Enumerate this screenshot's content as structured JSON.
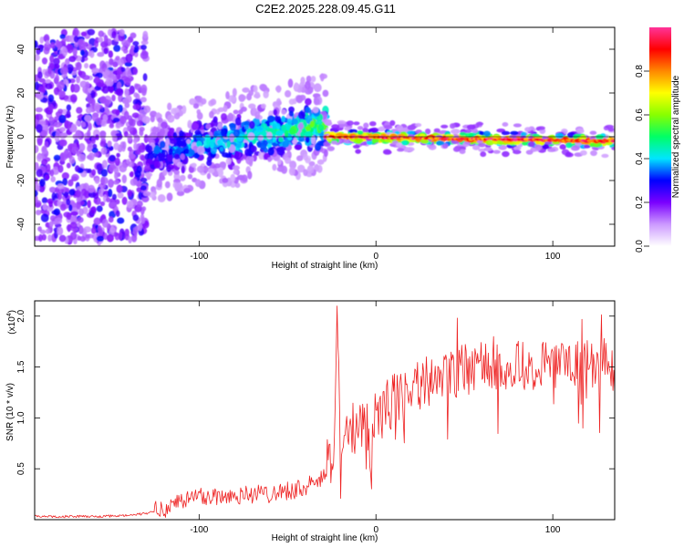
{
  "title": "C2E2.2025.228.09.45.G11",
  "chart_data": [
    {
      "type": "heatmap",
      "title": "C2E2.2025.228.09.45.G11",
      "xlabel": "Height of straight line (km)",
      "ylabel": "Frequency (Hz)",
      "xlim": [
        -193,
        135
      ],
      "ylim": [
        -50,
        50
      ],
      "xticks": [
        -100,
        0,
        100
      ],
      "yticks": [
        -40,
        -20,
        0,
        20,
        40
      ],
      "colorbar": {
        "label": "Normalized spectral amplitude",
        "range": [
          0.0,
          1.0
        ],
        "ticks": [
          "0.0",
          "0.2",
          "0.4",
          "0.6",
          "0.8"
        ],
        "colors": [
          "#ffffff",
          "#cc99ff",
          "#7a00ff",
          "#0000ff",
          "#00e5ff",
          "#00ff66",
          "#88ff00",
          "#ffff00",
          "#ff8800",
          "#ff0000",
          "#ff3399"
        ]
      },
      "segments": [
        {
          "x_range": [
            -193,
            -130
          ],
          "center_hz": [
            0,
            0
          ],
          "spread_hz": 48,
          "amplitude": [
            0.1,
            0.25
          ],
          "description": "broadband noise"
        },
        {
          "x_range": [
            -130,
            -28
          ],
          "center_hz": [
            -8,
            6
          ],
          "spread_hz": 9,
          "amplitude": [
            0.2,
            0.45
          ]
        },
        {
          "x_range": [
            -28,
            135
          ],
          "center_hz": [
            0,
            -2
          ],
          "spread_hz": 3,
          "amplitude": [
            0.5,
            1.0
          ]
        }
      ]
    },
    {
      "type": "line",
      "xlabel": "Height of straight line (km)",
      "ylabel": "SNR (10 * v/v)",
      "multiplier": "(x10",
      "multiplier_exp": "4",
      "xlim": [
        -193,
        135
      ],
      "ylim": [
        0,
        2.15
      ],
      "xticks": [
        -100,
        0,
        100
      ],
      "yticks": [
        0.5,
        1.0,
        1.5,
        2.0
      ],
      "color": "#ee2222",
      "series": [
        {
          "x": [
            -193,
            -175,
            -155,
            -140,
            -130,
            -120,
            -110,
            -100,
            -90,
            -80,
            -70,
            -60,
            -50,
            -40,
            -30,
            -24,
            -22,
            -20,
            -15,
            -10,
            -5,
            0,
            5,
            10,
            15,
            20,
            30,
            40,
            50,
            60,
            70,
            80,
            90,
            100,
            110,
            120,
            130,
            135
          ],
          "y": [
            0.03,
            0.03,
            0.03,
            0.04,
            0.06,
            0.1,
            0.18,
            0.22,
            0.22,
            0.23,
            0.24,
            0.25,
            0.28,
            0.3,
            0.4,
            0.6,
            2.1,
            0.5,
            0.8,
            0.95,
            0.9,
            1.0,
            1.05,
            1.15,
            1.2,
            1.28,
            1.35,
            1.4,
            1.45,
            1.48,
            1.47,
            1.5,
            1.5,
            1.48,
            1.45,
            1.5,
            1.5,
            1.45
          ]
        }
      ]
    }
  ]
}
